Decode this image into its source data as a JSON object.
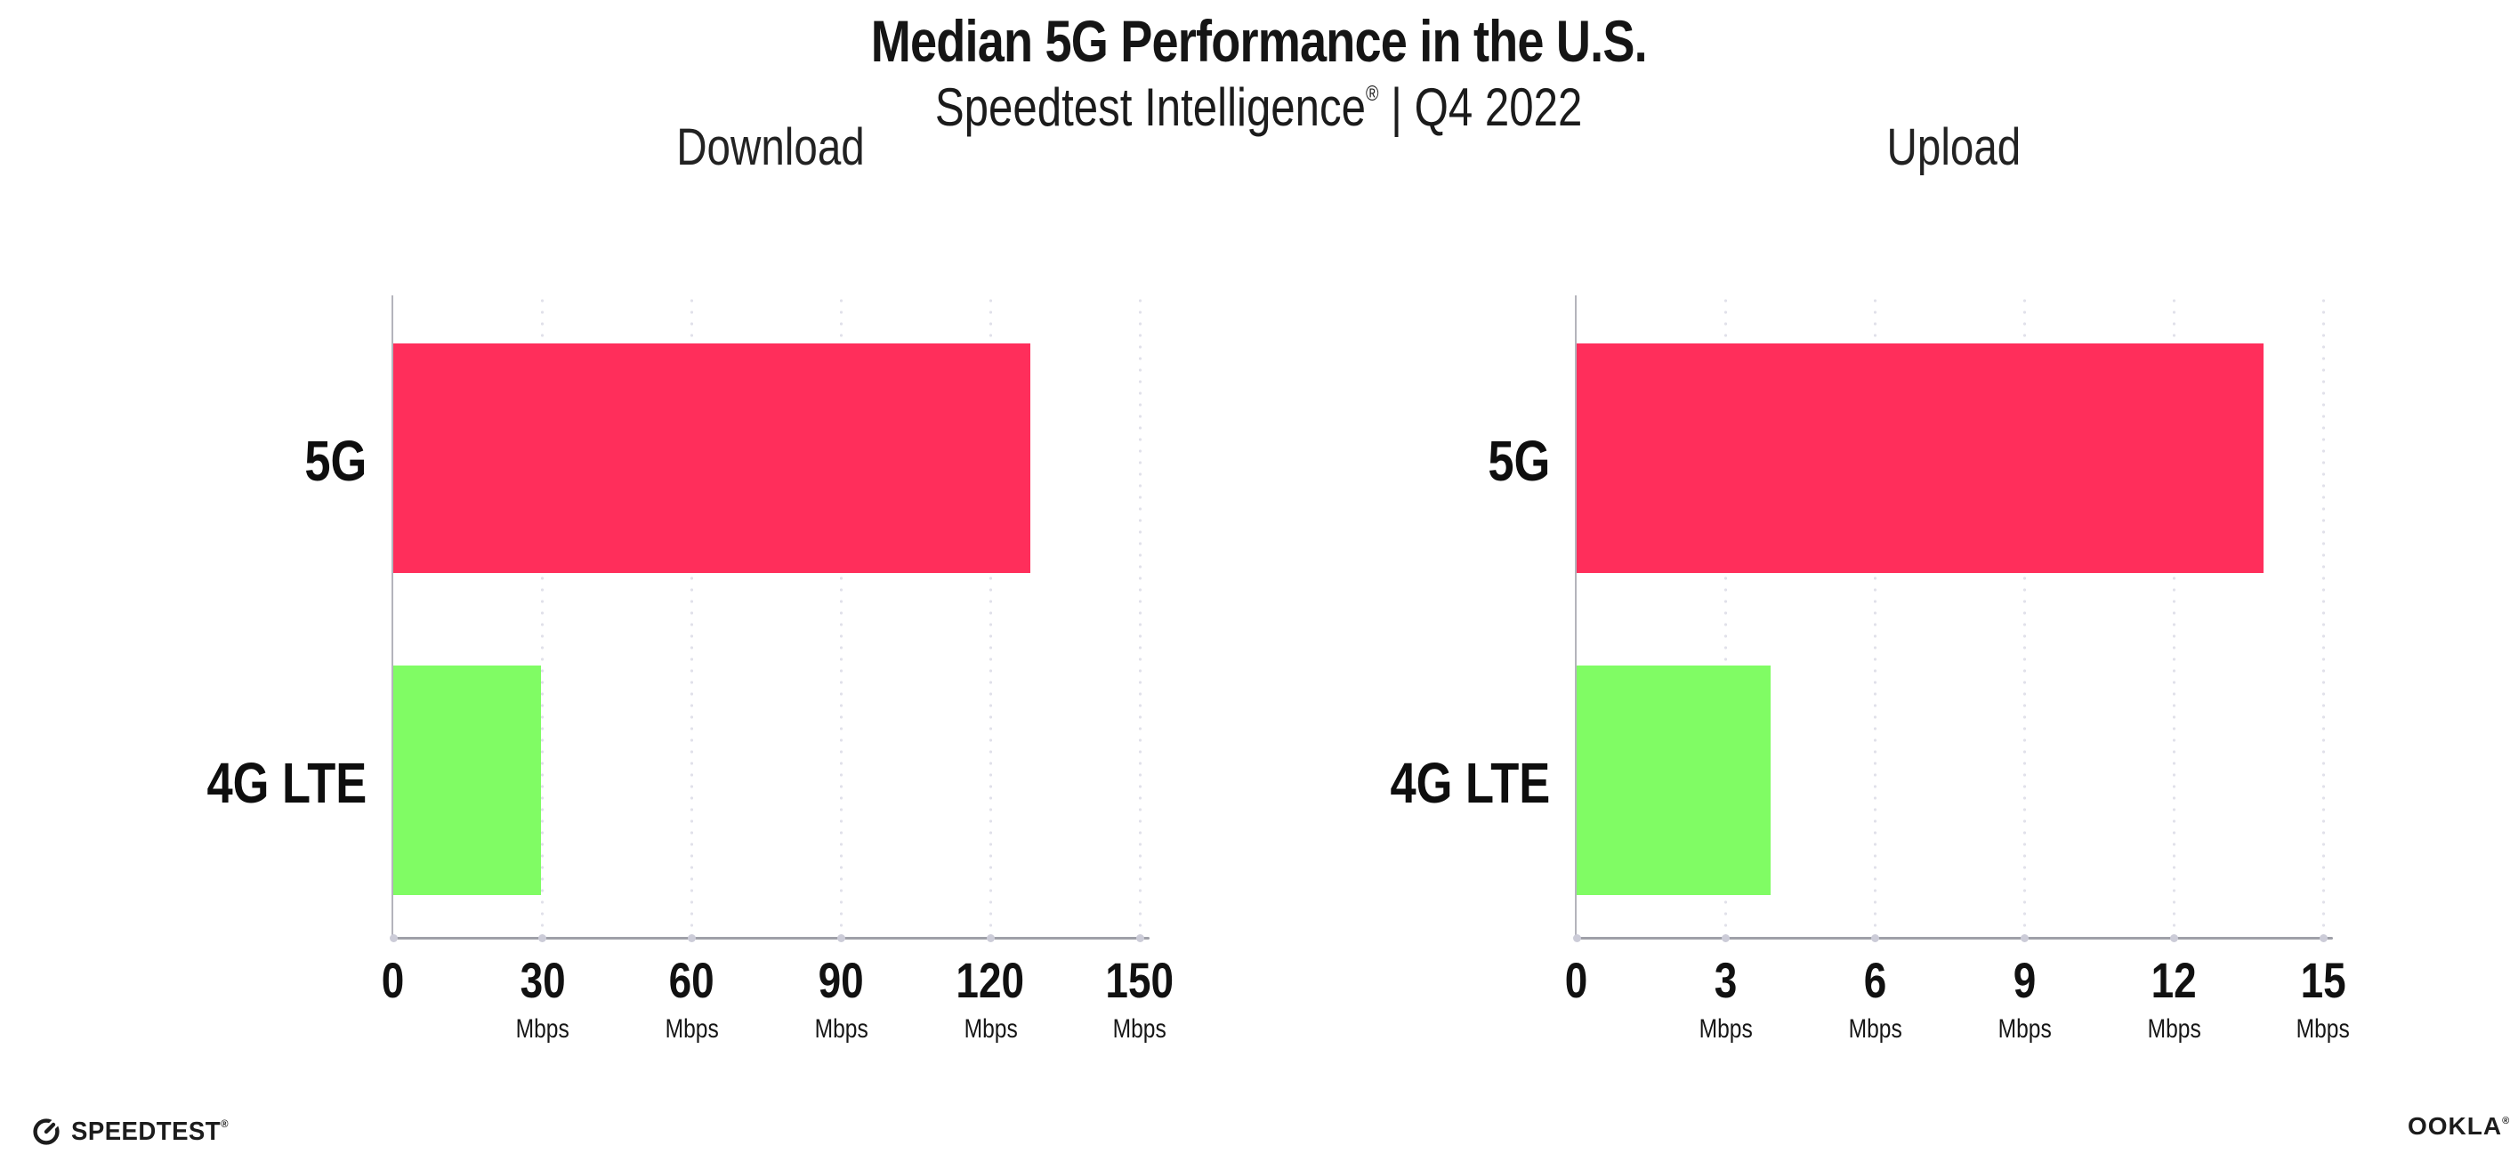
{
  "header": {
    "title": "Median 5G Performance in the U.S.",
    "subtitle_brand": "Speedtest Intelligence",
    "subtitle_mark": "®",
    "subtitle_rest": " | Q4 2022"
  },
  "footer": {
    "speedtest_label": "SPEEDTEST",
    "speedtest_mark": "®",
    "ookla_label": "OOKLA",
    "ookla_mark": "®"
  },
  "colors": {
    "bar_5g": "#FF2E5B",
    "bar_4g_lte": "#80FC64",
    "gridline": "#E1E1EA",
    "axis": "#9FA0A8",
    "text": "#121212"
  },
  "chart_data": [
    {
      "type": "bar",
      "orientation": "horizontal",
      "title": "Download",
      "categories": [
        "5G",
        "4G LTE"
      ],
      "values": [
        128,
        29.7
      ],
      "unit": "Mbps",
      "xlim": [
        0,
        150
      ],
      "x_ticks": [
        0,
        30,
        60,
        90,
        120,
        150
      ],
      "bar_colors": [
        "#FF2E5B",
        "#80FC64"
      ],
      "grid": "dotted-vertical",
      "legend": "none"
    },
    {
      "type": "bar",
      "orientation": "horizontal",
      "title": "Upload",
      "categories": [
        "5G",
        "4G LTE"
      ],
      "values": [
        13.8,
        3.9
      ],
      "unit": "Mbps",
      "xlim": [
        0,
        15
      ],
      "x_ticks": [
        0,
        3,
        6,
        9,
        12,
        15
      ],
      "bar_colors": [
        "#FF2E5B",
        "#80FC64"
      ],
      "grid": "dotted-vertical",
      "legend": "none"
    }
  ]
}
